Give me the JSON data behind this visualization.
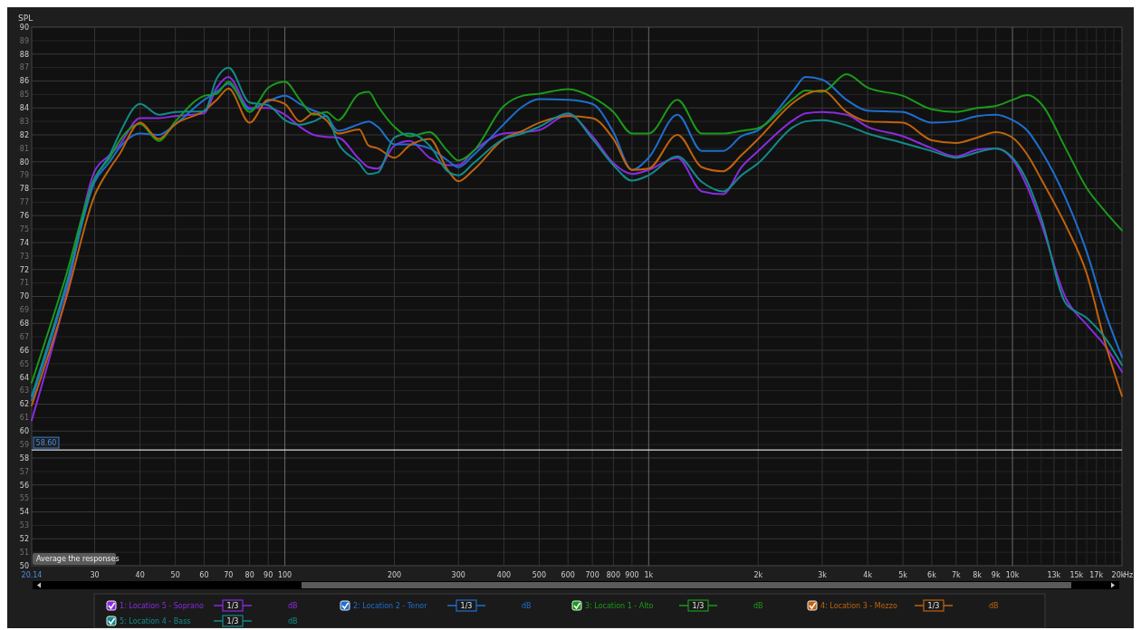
{
  "chart_data": {
    "type": "line",
    "ylabel": "SPL",
    "log": "x",
    "grid": true,
    "legend": "bottom",
    "line_style": "solid",
    "marker": "none",
    "x": [
      20.14,
      25,
      30,
      33,
      35,
      40,
      45,
      50,
      60,
      65,
      70,
      80,
      90,
      100,
      110,
      120,
      130,
      140,
      160,
      170,
      180,
      200,
      220,
      250,
      280,
      300,
      330,
      400,
      450,
      500,
      600,
      700,
      800,
      900,
      1000,
      1200,
      1400,
      1600,
      1800,
      2000,
      2500,
      2700,
      3000,
      3500,
      4000,
      5000,
      6000,
      7000,
      8000,
      9000,
      10000,
      11000,
      12000,
      14000,
      16000,
      18000,
      20000
    ],
    "series": [
      {
        "name": "1: Location 5 - Soprano",
        "color": "#8a2be2",
        "values": [
          60.8,
          70.0,
          79.3,
          80.5,
          81.2,
          83.25,
          83.25,
          83.4,
          83.6,
          85.5,
          86.3,
          84.0,
          84.0,
          83.5,
          82.6,
          82.0,
          81.85,
          81.8,
          80.2,
          79.6,
          79.5,
          81.2,
          81.55,
          80.3,
          79.75,
          79.75,
          80.8,
          82.1,
          82.2,
          82.35,
          83.5,
          81.9,
          79.9,
          79.1,
          79.4,
          80.3,
          77.8,
          77.6,
          79.6,
          80.8,
          83.1,
          83.6,
          83.7,
          83.5,
          82.6,
          81.9,
          81.0,
          80.4,
          80.9,
          81.0,
          80.2,
          78.1,
          75.4,
          69.9,
          67.9,
          66.3,
          64.4
        ]
      },
      {
        "name": "2: Location 2 - Tenor",
        "color": "#1e6fd0",
        "values": [
          62.3,
          70.5,
          78.5,
          80.0,
          81.0,
          82.1,
          82.0,
          82.8,
          84.6,
          85.2,
          85.8,
          83.9,
          84.5,
          84.9,
          84.3,
          83.8,
          83.4,
          82.3,
          82.8,
          83.0,
          82.6,
          81.3,
          81.3,
          81.0,
          80.1,
          79.6,
          80.5,
          82.8,
          84.1,
          84.65,
          84.6,
          84.3,
          82.2,
          79.4,
          80.3,
          83.5,
          80.8,
          80.8,
          81.9,
          82.35,
          85.3,
          86.3,
          86.1,
          84.6,
          83.8,
          83.7,
          82.9,
          83.0,
          83.4,
          83.5,
          83.1,
          82.3,
          80.8,
          77.3,
          73.3,
          68.8,
          65.5
        ]
      },
      {
        "name": "3: Location 1 - Alto",
        "color": "#1a9a1a",
        "values": [
          63.6,
          71.5,
          78.8,
          80.3,
          81.5,
          82.8,
          81.55,
          83.0,
          84.9,
          85.05,
          85.95,
          83.7,
          85.5,
          85.95,
          84.6,
          83.5,
          83.7,
          83.1,
          85.05,
          85.2,
          84.15,
          82.6,
          81.9,
          82.2,
          80.8,
          80.1,
          80.8,
          84.15,
          84.9,
          85.05,
          85.4,
          84.8,
          83.7,
          82.1,
          82.1,
          84.6,
          82.1,
          82.1,
          82.3,
          82.5,
          84.7,
          85.3,
          85.2,
          86.5,
          85.5,
          84.9,
          83.9,
          83.7,
          84.0,
          84.15,
          84.6,
          84.95,
          84.3,
          81.0,
          78.05,
          76.3,
          74.9
        ]
      },
      {
        "name": "4: Location 3 - Mezzo",
        "color": "#c0620e",
        "values": [
          61.9,
          69.8,
          77.5,
          79.5,
          80.5,
          82.9,
          81.7,
          82.8,
          83.8,
          84.6,
          85.45,
          82.9,
          84.6,
          84.3,
          83.0,
          83.6,
          83.1,
          82.1,
          82.4,
          81.2,
          81.0,
          80.3,
          81.2,
          81.7,
          79.4,
          78.55,
          79.4,
          81.7,
          82.3,
          82.9,
          83.4,
          83.25,
          81.7,
          79.4,
          79.5,
          82.0,
          79.6,
          79.3,
          80.5,
          81.7,
          84.4,
          85.0,
          85.3,
          83.7,
          83.0,
          82.9,
          81.6,
          81.4,
          81.8,
          82.2,
          81.8,
          80.5,
          78.7,
          75.3,
          71.7,
          66.5,
          62.6
        ]
      },
      {
        "name": "5: Location 4 - Bass",
        "color": "#138a8a",
        "values": [
          62.6,
          70.8,
          78.7,
          80.5,
          82.0,
          84.3,
          83.5,
          83.7,
          83.75,
          86.2,
          87.0,
          84.4,
          84.2,
          83.1,
          82.75,
          83.0,
          83.4,
          81.4,
          79.9,
          79.1,
          79.2,
          81.8,
          82.1,
          81.2,
          79.3,
          79.0,
          79.9,
          81.7,
          82.1,
          82.6,
          83.6,
          81.7,
          79.75,
          78.6,
          79.0,
          80.4,
          78.5,
          77.8,
          79.0,
          79.9,
          82.6,
          83.0,
          83.1,
          82.7,
          82.1,
          81.4,
          80.8,
          80.3,
          80.7,
          81.0,
          80.3,
          78.5,
          75.8,
          69.5,
          68.4,
          66.9,
          64.9
        ]
      }
    ],
    "xlim": [
      20.14,
      20000
    ],
    "xticks": [
      {
        "value": 20.14,
        "label": "20.14"
      },
      30,
      40,
      50,
      60,
      70,
      80,
      90,
      100,
      200,
      300,
      400,
      500,
      600,
      700,
      800,
      900,
      {
        "value": 1000,
        "label": "1k"
      },
      {
        "value": 2000,
        "label": "2k"
      },
      {
        "value": 3000,
        "label": "3k"
      },
      {
        "value": 4000,
        "label": "4k"
      },
      {
        "value": 5000,
        "label": "5k"
      },
      {
        "value": 6000,
        "label": "6k"
      },
      {
        "value": 7000,
        "label": "7k"
      },
      {
        "value": 8000,
        "label": "8k"
      },
      {
        "value": 9000,
        "label": "9k"
      },
      {
        "value": 10000,
        "label": "10k"
      },
      {
        "value": 13000,
        "label": "13k"
      },
      {
        "value": 15000,
        "label": "15k"
      },
      {
        "value": 17000,
        "label": "17k"
      },
      {
        "value": 20000,
        "label": "20k"
      }
    ],
    "xlabel": "Hz",
    "ylim": [
      50,
      90
    ],
    "yticks": [
      50,
      51,
      52,
      53,
      54,
      55,
      56,
      57,
      58,
      59,
      60,
      61,
      62,
      63,
      64,
      65,
      66,
      67,
      68,
      69,
      70,
      71,
      72,
      73,
      74,
      75,
      76,
      77,
      78,
      79,
      80,
      81,
      82,
      83,
      84,
      85,
      86,
      87,
      88,
      89,
      90
    ],
    "ref_lines": [
      {
        "axis": "y",
        "value": 58.6,
        "label": "58.60",
        "color": "#d8d8d8"
      }
    ],
    "annotations": [
      "Average the responses",
      "1/3",
      "dB"
    ]
  }
}
